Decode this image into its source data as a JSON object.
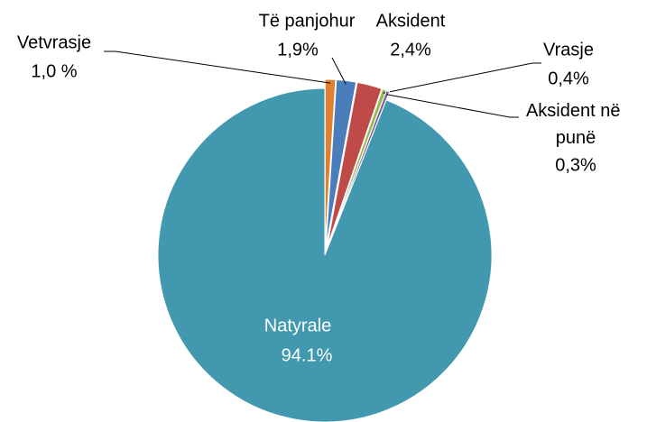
{
  "chart_data": {
    "type": "pie",
    "categories": [
      "Vetvrasje",
      "Të panjohur",
      "Aksident",
      "Vrasje",
      "Aksident në punë",
      "Natyrale"
    ],
    "values": [
      1.0,
      1.9,
      2.4,
      0.4,
      0.3,
      94.1
    ],
    "value_labels": [
      "1,0 %",
      "1,9%",
      "2,4%",
      "0,4%",
      "0,3%",
      "94.1%"
    ],
    "colors": [
      "#e0812f",
      "#4a7ebb",
      "#be4b48",
      "#98b954",
      "#7d60a0",
      "#4198af"
    ]
  }
}
